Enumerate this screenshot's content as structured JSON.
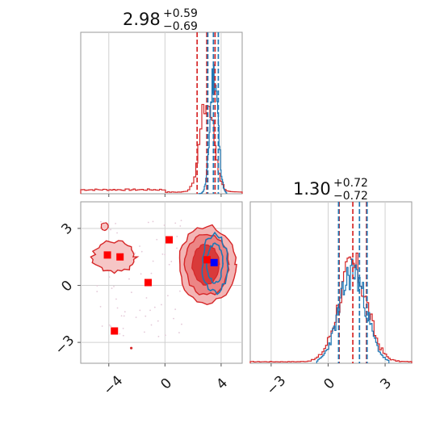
{
  "chart_data": [
    {
      "type": "histogram",
      "panel": "x-marginal",
      "title": {
        "value": "2.98",
        "plus": "+0.59",
        "minus": "−0.69"
      },
      "xlim": [
        -6,
        5.5
      ],
      "series": [
        {
          "name": "",
          "color": "#d62728",
          "quantile_lines": [
            2.29,
            2.98,
            3.57
          ]
        },
        {
          "name": "",
          "color": "#1f77b4",
          "quantile_lines": [
            3.05,
            3.45,
            3.8
          ]
        }
      ],
      "grid": true
    },
    {
      "type": "contour",
      "panel": "joint",
      "xlim": [
        -6,
        5.5
      ],
      "ylim": [
        -4.1,
        4.4
      ],
      "xticks": [
        -4,
        0,
        4
      ],
      "yticks": [
        3,
        0,
        -3
      ],
      "xtick_labels": [
        "−4",
        "0",
        "4"
      ],
      "ytick_labels": [
        "3",
        "0",
        "−3"
      ],
      "markers": {
        "red": [
          [
            -4.1,
            1.6
          ],
          [
            -3.2,
            1.5
          ],
          [
            -1.2,
            0.15
          ],
          [
            0.3,
            2.4
          ],
          [
            3.0,
            1.35
          ],
          [
            -3.6,
            -2.4
          ]
        ],
        "blue": [
          [
            3.5,
            1.2
          ]
        ]
      },
      "colors": {
        "red": "#d62728",
        "blue": "#1f77b4",
        "marker_blue": "#0000ff"
      },
      "grid": true
    },
    {
      "type": "histogram",
      "panel": "y-marginal",
      "title": {
        "value": "1.30",
        "plus": "+0.72",
        "minus": "−0.72"
      },
      "xlim": [
        -4.1,
        4.4
      ],
      "xticks": [
        -3,
        0,
        3
      ],
      "xtick_labels": [
        "−3",
        "0",
        "3"
      ],
      "series": [
        {
          "name": "",
          "color": "#d62728",
          "quantile_lines": [
            0.58,
            1.3,
            2.02
          ]
        },
        {
          "name": "",
          "color": "#1f77b4",
          "quantile_lines": [
            0.55,
            1.65,
            2.05
          ]
        }
      ],
      "grid": true
    }
  ]
}
